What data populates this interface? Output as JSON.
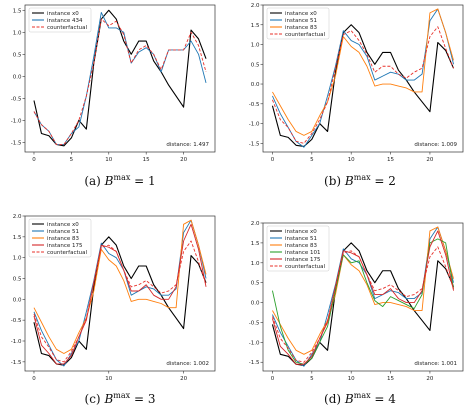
{
  "panels": [
    {
      "caption_prefix": "(a)",
      "caption_symbol": "B",
      "caption_sup": "max",
      "caption_suffix": "= 1"
    },
    {
      "caption_prefix": "(b)",
      "caption_symbol": "B",
      "caption_sup": "max",
      "caption_suffix": "= 2"
    },
    {
      "caption_prefix": "(c)",
      "caption_symbol": "B",
      "caption_sup": "max",
      "caption_suffix": "= 3"
    },
    {
      "caption_prefix": "(d)",
      "caption_symbol": "B",
      "caption_sup": "max",
      "caption_suffix": "= 4"
    }
  ],
  "colors": {
    "instance x0": "#000000",
    "instance 434": "#1f77b4",
    "instance 51": "#1f77b4",
    "instance 83": "#ff7f0e",
    "instance 101": "#2ca02c",
    "instance 175": "#d62728",
    "counterfactual": "#e8302a"
  },
  "chart_data": [
    {
      "type": "line",
      "title": "",
      "xlabel": "",
      "ylabel": "",
      "xlim": [
        -1.2,
        24.2
      ],
      "ylim": [
        -1.72,
        1.62
      ],
      "xticks": [
        0,
        5,
        10,
        15,
        20
      ],
      "yticks": [
        -1.5,
        -1.0,
        -0.5,
        0.0,
        0.5,
        1.0,
        1.5
      ],
      "legend": "top-left",
      "annotation": "distance: 1.497",
      "x": [
        0,
        1,
        2,
        3,
        4,
        5,
        6,
        7,
        8,
        9,
        10,
        11,
        12,
        13,
        14,
        15,
        16,
        17,
        18,
        19,
        20,
        21,
        22,
        23
      ],
      "series": [
        {
          "name": "instance x0",
          "style": "solid",
          "values": [
            -0.55,
            -1.3,
            -1.35,
            -1.55,
            -1.58,
            -1.4,
            -1.0,
            -1.2,
            0.3,
            1.3,
            1.5,
            1.3,
            0.8,
            0.5,
            0.8,
            0.8,
            0.35,
            0.1,
            -0.2,
            -0.45,
            -0.7,
            1.05,
            0.85,
            0.4
          ]
        },
        {
          "name": "instance 434",
          "style": "solid",
          "values": [
            -0.8,
            -1.1,
            -1.25,
            -1.55,
            -1.55,
            -1.3,
            -1.15,
            -0.45,
            0.45,
            1.45,
            1.1,
            1.1,
            1.0,
            0.3,
            0.55,
            0.65,
            0.5,
            0.1,
            0.6,
            0.6,
            0.6,
            0.8,
            0.5,
            -0.15
          ]
        },
        {
          "name": "counterfactual",
          "style": "dashed",
          "values": [
            -0.8,
            -1.1,
            -1.25,
            -1.55,
            -1.55,
            -1.3,
            -1.0,
            -0.45,
            0.3,
            1.3,
            1.15,
            1.25,
            0.95,
            0.3,
            0.6,
            0.7,
            0.5,
            0.15,
            0.6,
            0.6,
            0.6,
            1.0,
            0.7,
            0.1
          ]
        }
      ]
    },
    {
      "type": "line",
      "title": "",
      "xlabel": "",
      "ylabel": "",
      "xlim": [
        -1.2,
        24.2
      ],
      "ylim": [
        -1.72,
        2.0
      ],
      "xticks": [
        0,
        5,
        10,
        15,
        20
      ],
      "yticks": [
        -1.5,
        -1.0,
        -0.5,
        0.0,
        0.5,
        1.0,
        1.5,
        2.0
      ],
      "legend": "top-left",
      "annotation": "distance: 1.009",
      "x": [
        0,
        1,
        2,
        3,
        4,
        5,
        6,
        7,
        8,
        9,
        10,
        11,
        12,
        13,
        14,
        15,
        16,
        17,
        18,
        19,
        20,
        21,
        22,
        23
      ],
      "series": [
        {
          "name": "instance x0",
          "style": "solid",
          "values": [
            -0.55,
            -1.3,
            -1.35,
            -1.55,
            -1.58,
            -1.4,
            -1.0,
            -1.2,
            0.3,
            1.3,
            1.5,
            1.3,
            0.8,
            0.5,
            0.8,
            0.8,
            0.35,
            0.1,
            -0.2,
            -0.45,
            -0.7,
            1.05,
            0.85,
            0.4
          ]
        },
        {
          "name": "instance 51",
          "style": "solid",
          "values": [
            -0.3,
            -0.75,
            -1.1,
            -1.45,
            -1.6,
            -1.3,
            -1.0,
            -0.3,
            0.45,
            1.35,
            1.1,
            1.0,
            0.7,
            0.1,
            0.2,
            0.3,
            0.25,
            0.1,
            0.1,
            0.25,
            1.6,
            1.9,
            1.3,
            0.5
          ]
        },
        {
          "name": "instance 83",
          "style": "solid",
          "values": [
            -0.2,
            -0.55,
            -0.9,
            -1.2,
            -1.3,
            -1.2,
            -0.8,
            -0.45,
            0.2,
            1.2,
            0.95,
            0.8,
            0.45,
            -0.05,
            0.0,
            0.0,
            -0.05,
            -0.1,
            -0.2,
            -0.2,
            1.8,
            1.9,
            1.3,
            0.6
          ]
        },
        {
          "name": "counterfactual",
          "style": "dashed",
          "values": [
            -0.4,
            -0.9,
            -1.1,
            -1.45,
            -1.5,
            -1.25,
            -0.9,
            -0.45,
            0.4,
            1.25,
            1.35,
            1.1,
            0.75,
            0.3,
            0.45,
            0.45,
            0.25,
            0.15,
            0.3,
            0.4,
            1.2,
            1.45,
            0.9,
            0.4
          ]
        }
      ]
    },
    {
      "type": "line",
      "title": "",
      "xlabel": "",
      "ylabel": "",
      "xlim": [
        -1.2,
        24.2
      ],
      "ylim": [
        -1.72,
        2.0
      ],
      "xticks": [
        0,
        10,
        20
      ],
      "yticks": [
        -1.5,
        -1.0,
        -0.5,
        0.0,
        0.5,
        1.0,
        1.5,
        2.0
      ],
      "legend": "top-left",
      "annotation": "distance: 1.002",
      "x": [
        0,
        1,
        2,
        3,
        4,
        5,
        6,
        7,
        8,
        9,
        10,
        11,
        12,
        13,
        14,
        15,
        16,
        17,
        18,
        19,
        20,
        21,
        22,
        23
      ],
      "series": [
        {
          "name": "instance x0",
          "style": "solid",
          "values": [
            -0.55,
            -1.3,
            -1.35,
            -1.55,
            -1.58,
            -1.4,
            -1.0,
            -1.2,
            0.3,
            1.3,
            1.5,
            1.3,
            0.8,
            0.5,
            0.8,
            0.8,
            0.35,
            0.1,
            -0.2,
            -0.45,
            -0.7,
            1.05,
            0.85,
            0.4
          ]
        },
        {
          "name": "instance 51",
          "style": "solid",
          "values": [
            -0.3,
            -0.75,
            -1.1,
            -1.45,
            -1.6,
            -1.3,
            -1.0,
            -0.3,
            0.45,
            1.35,
            1.1,
            1.0,
            0.7,
            0.1,
            0.2,
            0.3,
            0.25,
            0.1,
            0.1,
            0.25,
            1.6,
            1.9,
            1.3,
            0.5
          ]
        },
        {
          "name": "instance 83",
          "style": "solid",
          "values": [
            -0.2,
            -0.55,
            -0.9,
            -1.2,
            -1.3,
            -1.2,
            -0.8,
            -0.45,
            0.2,
            1.2,
            0.95,
            0.8,
            0.45,
            -0.05,
            0.0,
            0.0,
            -0.05,
            -0.1,
            -0.2,
            -0.2,
            1.8,
            1.9,
            1.3,
            0.6
          ]
        },
        {
          "name": "instance 175",
          "style": "solid",
          "values": [
            -0.4,
            -1.1,
            -1.3,
            -1.55,
            -1.55,
            -1.35,
            -0.9,
            -0.5,
            0.4,
            1.3,
            1.25,
            1.15,
            0.7,
            0.2,
            0.2,
            0.35,
            0.1,
            0.0,
            0.0,
            0.3,
            1.4,
            1.8,
            1.2,
            0.3
          ]
        },
        {
          "name": "counterfactual",
          "style": "dashed",
          "values": [
            -0.35,
            -0.9,
            -1.15,
            -1.45,
            -1.5,
            -1.25,
            -0.9,
            -0.45,
            0.4,
            1.25,
            1.3,
            1.15,
            0.7,
            0.3,
            0.35,
            0.45,
            0.3,
            0.15,
            0.2,
            0.35,
            1.15,
            1.4,
            0.9,
            0.35
          ]
        }
      ]
    },
    {
      "type": "line",
      "title": "",
      "xlabel": "",
      "ylabel": "",
      "xlim": [
        -1.2,
        24.2
      ],
      "ylim": [
        -1.72,
        2.0
      ],
      "xticks": [
        0,
        5,
        10,
        15,
        20
      ],
      "yticks": [
        -1.5,
        -1.0,
        -0.5,
        0.0,
        0.5,
        1.0,
        1.5,
        2.0
      ],
      "legend": "top-left",
      "annotation": "distance: 1.001",
      "x": [
        0,
        1,
        2,
        3,
        4,
        5,
        6,
        7,
        8,
        9,
        10,
        11,
        12,
        13,
        14,
        15,
        16,
        17,
        18,
        19,
        20,
        21,
        22,
        23
      ],
      "series": [
        {
          "name": "instance x0",
          "style": "solid",
          "values": [
            -0.55,
            -1.3,
            -1.35,
            -1.55,
            -1.58,
            -1.4,
            -1.0,
            -1.2,
            0.3,
            1.3,
            1.5,
            1.3,
            0.8,
            0.5,
            0.8,
            0.8,
            0.35,
            0.1,
            -0.2,
            -0.45,
            -0.7,
            1.05,
            0.85,
            0.4
          ]
        },
        {
          "name": "instance 51",
          "style": "solid",
          "values": [
            -0.3,
            -0.75,
            -1.1,
            -1.45,
            -1.6,
            -1.3,
            -1.0,
            -0.3,
            0.45,
            1.35,
            1.1,
            1.0,
            0.7,
            0.1,
            0.2,
            0.3,
            0.25,
            0.1,
            0.1,
            0.25,
            1.6,
            1.9,
            1.3,
            0.5
          ]
        },
        {
          "name": "instance 83",
          "style": "solid",
          "values": [
            -0.2,
            -0.55,
            -0.9,
            -1.2,
            -1.3,
            -1.2,
            -0.8,
            -0.45,
            0.2,
            1.2,
            0.95,
            0.8,
            0.45,
            -0.05,
            0.0,
            0.0,
            -0.05,
            -0.1,
            -0.2,
            -0.2,
            1.8,
            1.9,
            1.3,
            0.6
          ]
        },
        {
          "name": "instance 101",
          "style": "solid",
          "values": [
            0.3,
            -0.6,
            -1.2,
            -1.5,
            -1.55,
            -1.4,
            -1.0,
            -0.6,
            0.3,
            1.2,
            1.0,
            1.05,
            0.5,
            0.05,
            -0.1,
            0.15,
            0.05,
            -0.05,
            -0.15,
            0.2,
            1.5,
            1.6,
            1.5,
            0.35
          ]
        },
        {
          "name": "instance 175",
          "style": "solid",
          "values": [
            -0.4,
            -1.1,
            -1.3,
            -1.55,
            -1.55,
            -1.35,
            -0.9,
            -0.5,
            0.4,
            1.3,
            1.25,
            1.15,
            0.7,
            0.2,
            0.2,
            0.35,
            0.1,
            0.0,
            0.0,
            0.3,
            1.4,
            1.8,
            1.2,
            0.3
          ]
        },
        {
          "name": "counterfactual",
          "style": "dashed",
          "values": [
            -0.35,
            -0.9,
            -1.15,
            -1.45,
            -1.5,
            -1.25,
            -0.9,
            -0.45,
            0.4,
            1.25,
            1.3,
            1.15,
            0.7,
            0.3,
            0.35,
            0.45,
            0.3,
            0.15,
            0.2,
            0.35,
            1.15,
            1.4,
            0.9,
            0.35
          ]
        }
      ]
    }
  ]
}
